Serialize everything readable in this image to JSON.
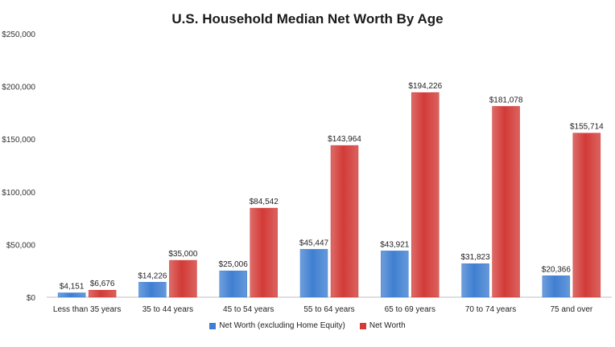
{
  "chart_data": {
    "type": "bar",
    "title": "U.S. Household Median Net Worth By Age",
    "categories": [
      "Less than 35 years",
      "35 to 44 years",
      "45 to 54 years",
      "55 to 64 years",
      "65 to 69 years",
      "70 to 74 years",
      "75 and over"
    ],
    "series": [
      {
        "name": "Net Worth (excluding Home Equity)",
        "color": "#3f7fd1",
        "values": [
          4151,
          14226,
          25006,
          45447,
          43921,
          31823,
          20366
        ],
        "labels": [
          "$4,151",
          "$14,226",
          "$25,006",
          "$45,447",
          "$43,921",
          "$31,823",
          "$20,366"
        ]
      },
      {
        "name": "Net Worth",
        "color": "#d23b37",
        "values": [
          6676,
          35000,
          84542,
          143964,
          194226,
          181078,
          155714
        ],
        "labels": [
          "$6,676",
          "$35,000",
          "$84,542",
          "$143,964",
          "$194,226",
          "$181,078",
          "$155,714"
        ]
      }
    ],
    "ylim": [
      0,
      250000
    ],
    "yticks": [
      0,
      50000,
      100000,
      150000,
      200000,
      250000
    ],
    "ytick_labels": [
      "$0",
      "$50,000",
      "$100,000",
      "$150,000",
      "$200,000",
      "$250,000"
    ],
    "grid": false,
    "legend_position": "bottom"
  }
}
